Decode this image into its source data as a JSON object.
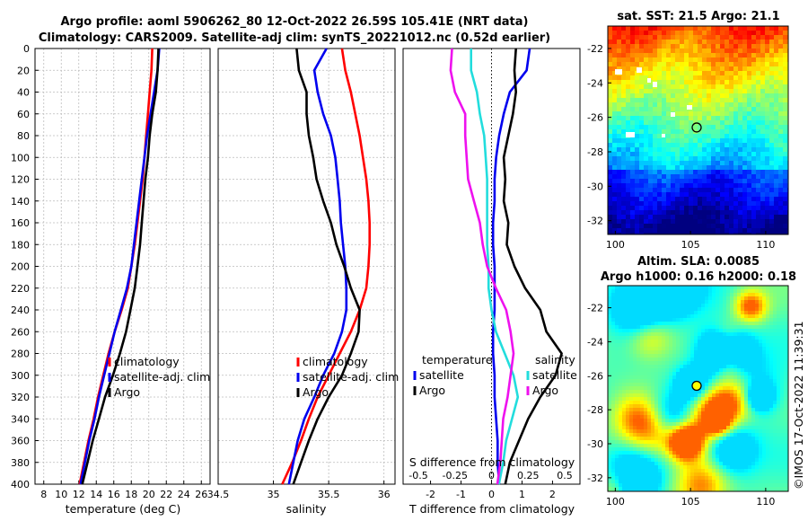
{
  "title": {
    "line1": "Argo profile: aoml 5906262_80 12-Oct-2022 26.59S 105.41E (NRT data)",
    "line2": "Climatology: CARS2009. Satellite-adj clim: synTS_20221012.nc (0.52d earlier)"
  },
  "colors": {
    "climatology": "#ff0000",
    "satellite": "#0000ee",
    "argo": "#000000",
    "salinity_diff": "#ee11ee",
    "satellite_salinity_diff": "#22dddd"
  },
  "chart_data": [
    {
      "type": "line",
      "name": "temperature",
      "xlabel": "temperature (deg C)",
      "ylabel": "",
      "xlim": [
        7,
        27
      ],
      "ylim": [
        400,
        0
      ],
      "xticks": [
        8,
        10,
        12,
        14,
        16,
        18,
        20,
        22,
        24,
        26
      ],
      "yticks": [
        0,
        20,
        40,
        60,
        80,
        100,
        120,
        140,
        160,
        180,
        200,
        220,
        240,
        260,
        280,
        300,
        320,
        340,
        360,
        380,
        400
      ],
      "grid": true,
      "legend": [
        "climatology",
        "satellite-adj. clim",
        "Argo"
      ],
      "legend_position": "center-right",
      "series": [
        {
          "name": "climatology",
          "color": "#ff0000",
          "depth": [
            0,
            20,
            40,
            60,
            80,
            100,
            120,
            140,
            160,
            180,
            200,
            220,
            240,
            260,
            280,
            300,
            320,
            340,
            360,
            380,
            400
          ],
          "values": [
            20.4,
            20.3,
            20.1,
            19.9,
            19.7,
            19.5,
            19.3,
            19.0,
            18.7,
            18.4,
            18.0,
            17.6,
            16.9,
            16.1,
            15.4,
            14.8,
            14.2,
            13.7,
            13.1,
            12.6,
            12.1
          ]
        },
        {
          "name": "satellite-adj. clim",
          "color": "#0000ee",
          "depth": [
            0,
            20,
            40,
            60,
            80,
            100,
            120,
            140,
            160,
            180,
            200,
            220,
            240,
            260,
            280,
            300,
            320,
            340,
            360,
            380,
            400
          ],
          "values": [
            21.2,
            21.0,
            20.6,
            20.2,
            19.8,
            19.5,
            19.2,
            18.9,
            18.6,
            18.3,
            18.0,
            17.5,
            16.8,
            16.1,
            15.5,
            14.9,
            14.3,
            13.8,
            13.2,
            12.7,
            12.2
          ]
        },
        {
          "name": "Argo",
          "color": "#000000",
          "depth": [
            0,
            20,
            40,
            60,
            80,
            100,
            120,
            140,
            160,
            180,
            200,
            220,
            240,
            260,
            280,
            300,
            320,
            340,
            360,
            380,
            400
          ],
          "values": [
            21.1,
            21.0,
            20.8,
            20.4,
            20.1,
            19.9,
            19.6,
            19.4,
            19.2,
            19.0,
            18.7,
            18.4,
            17.9,
            17.4,
            16.7,
            15.9,
            15.0,
            14.3,
            13.6,
            13.0,
            12.4
          ]
        }
      ]
    },
    {
      "type": "line",
      "name": "salinity",
      "xlabel": "salinity",
      "ylabel": "",
      "xlim": [
        34.5,
        36.1
      ],
      "ylim": [
        400,
        0
      ],
      "xticks": [
        34.5,
        35,
        35.5,
        36
      ],
      "xticklabels": [
        "34.5",
        "35",
        "35.5",
        "36"
      ],
      "grid": true,
      "legend": [
        "climatology",
        "satellite-adj. clim",
        "Argo"
      ],
      "legend_position": "center-right",
      "series": [
        {
          "name": "climatology",
          "color": "#ff0000",
          "depth": [
            0,
            20,
            40,
            60,
            80,
            100,
            120,
            140,
            160,
            180,
            200,
            220,
            240,
            260,
            280,
            300,
            320,
            340,
            360,
            380,
            400
          ],
          "values": [
            35.62,
            35.65,
            35.7,
            35.74,
            35.78,
            35.81,
            35.84,
            35.86,
            35.87,
            35.87,
            35.86,
            35.84,
            35.78,
            35.7,
            35.6,
            35.5,
            35.4,
            35.32,
            35.25,
            35.17,
            35.08
          ]
        },
        {
          "name": "satellite-adj. clim",
          "color": "#0000ee",
          "depth": [
            0,
            20,
            40,
            60,
            80,
            100,
            120,
            140,
            160,
            180,
            200,
            220,
            240,
            260,
            280,
            300,
            320,
            340,
            360,
            380,
            400
          ],
          "values": [
            35.48,
            35.37,
            35.4,
            35.45,
            35.52,
            35.56,
            35.58,
            35.6,
            35.61,
            35.63,
            35.65,
            35.66,
            35.66,
            35.62,
            35.55,
            35.45,
            35.37,
            35.28,
            35.22,
            35.18,
            35.14
          ]
        },
        {
          "name": "Argo",
          "color": "#000000",
          "depth": [
            0,
            20,
            40,
            60,
            80,
            100,
            120,
            140,
            160,
            180,
            200,
            220,
            240,
            260,
            280,
            300,
            320,
            340,
            360,
            380,
            400
          ],
          "values": [
            35.21,
            35.23,
            35.3,
            35.3,
            35.32,
            35.36,
            35.39,
            35.45,
            35.52,
            35.57,
            35.64,
            35.7,
            35.78,
            35.77,
            35.7,
            35.62,
            35.5,
            35.4,
            35.32,
            35.25,
            35.18
          ]
        }
      ]
    },
    {
      "type": "line",
      "name": "difference",
      "xlabel": "T difference from climatology",
      "xlabel_top": "S difference from climatology",
      "ylim": [
        400,
        0
      ],
      "xlim": [
        -2.9,
        2.9
      ],
      "xticks": [
        -2,
        -1,
        0,
        1,
        2
      ],
      "xticklabels": [
        "-2",
        "-1",
        "0",
        "1",
        "2"
      ],
      "s_xticks": [
        -0.5,
        -0.25,
        0,
        0.25,
        0.5
      ],
      "s_xticklabels": [
        "-0.5",
        "-0.25",
        "0",
        "0.25",
        "0.5"
      ],
      "grid": false,
      "legend_temperature": {
        "title": "temperature",
        "items": [
          "satellite",
          "Argo"
        ]
      },
      "legend_salinity": {
        "title": "salinity",
        "items": [
          "satellite",
          "Argo"
        ]
      },
      "series": [
        {
          "name": "T satellite",
          "color": "#0000ee",
          "unit": "T",
          "depth": [
            0,
            20,
            40,
            60,
            80,
            100,
            120,
            140,
            160,
            180,
            200,
            220,
            240,
            260,
            280,
            300,
            320,
            340,
            360,
            380,
            400
          ],
          "values": [
            1.25,
            1.15,
            0.6,
            0.4,
            0.25,
            0.15,
            0.1,
            0.1,
            0.05,
            0.05,
            0.1,
            0.1,
            0.1,
            0.05,
            0.05,
            0.1,
            0.1,
            0.15,
            0.2,
            0.2,
            0.25
          ]
        },
        {
          "name": "T Argo",
          "color": "#000000",
          "unit": "T",
          "depth": [
            0,
            20,
            40,
            60,
            80,
            100,
            120,
            140,
            160,
            180,
            200,
            220,
            240,
            260,
            280,
            300,
            320,
            340,
            360,
            380,
            400
          ],
          "values": [
            0.8,
            0.75,
            0.8,
            0.7,
            0.55,
            0.4,
            0.45,
            0.4,
            0.55,
            0.5,
            0.75,
            1.1,
            1.6,
            1.8,
            2.3,
            2.1,
            1.6,
            1.2,
            0.9,
            0.6,
            0.45
          ]
        },
        {
          "name": "S satellite",
          "color": "#22dddd",
          "unit": "S",
          "depth": [
            0,
            20,
            40,
            60,
            80,
            100,
            120,
            140,
            160,
            180,
            200,
            220,
            240,
            260,
            280,
            300,
            320,
            340,
            360,
            380,
            400
          ],
          "values": [
            -0.14,
            -0.14,
            -0.1,
            -0.08,
            -0.05,
            -0.04,
            -0.03,
            -0.03,
            -0.03,
            -0.03,
            -0.02,
            -0.02,
            0.0,
            0.03,
            0.09,
            0.15,
            0.18,
            0.14,
            0.1,
            0.08,
            0.05
          ]
        },
        {
          "name": "S Argo",
          "color": "#ee11ee",
          "unit": "S",
          "depth": [
            0,
            20,
            40,
            60,
            80,
            100,
            120,
            140,
            160,
            180,
            200,
            220,
            240,
            260,
            280,
            300,
            320,
            340,
            360,
            380,
            400
          ],
          "values": [
            -0.27,
            -0.28,
            -0.25,
            -0.18,
            -0.18,
            -0.17,
            -0.16,
            -0.12,
            -0.08,
            -0.06,
            -0.03,
            0.03,
            0.1,
            0.13,
            0.15,
            0.13,
            0.11,
            0.08,
            0.07,
            0.06,
            0.04
          ]
        }
      ]
    },
    {
      "type": "heatmap",
      "name": "sst_map",
      "title": "sat. SST: 21.5 Argo: 21.1",
      "xticks": [
        100,
        105,
        110
      ],
      "yticks": [
        -22,
        -24,
        -26,
        -28,
        -30,
        -32
      ],
      "xlim": [
        99.5,
        111.5
      ],
      "ylim": [
        -32.8,
        -20.7
      ],
      "marker": [
        105.41,
        -26.59
      ]
    },
    {
      "type": "heatmap",
      "name": "sla_map",
      "title_line1": "Altim. SLA: 0.0085",
      "title_line2": "Argo h1000: 0.16 h2000: 0.18",
      "xticks": [
        100,
        105,
        110
      ],
      "yticks": [
        -22,
        -24,
        -26,
        -28,
        -30,
        -32
      ],
      "xlim": [
        99.5,
        111.5
      ],
      "ylim": [
        -32.8,
        -20.7
      ],
      "marker": [
        105.41,
        -26.59
      ]
    }
  ],
  "watermark": "©IMOS 17-Oct-2022 11:39:31"
}
